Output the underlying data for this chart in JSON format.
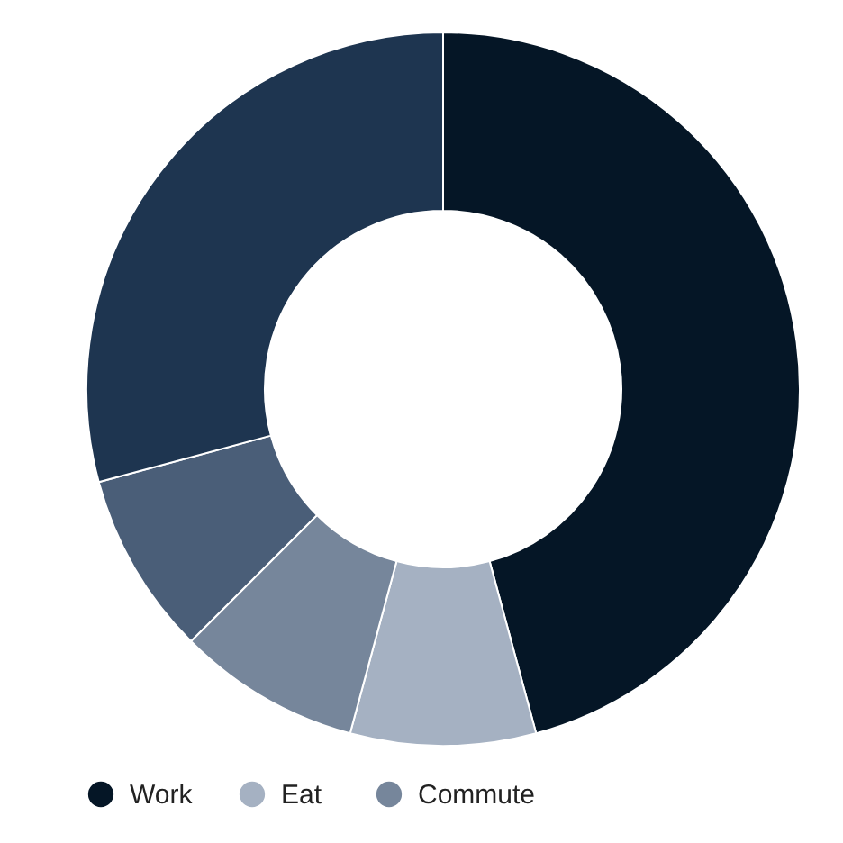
{
  "chart_data": {
    "type": "donut",
    "categories": [
      "Work",
      "Eat",
      "Commute",
      null,
      null
    ],
    "values": [
      45.8,
      8.4,
      8.3,
      8.3,
      29.2
    ],
    "colors": [
      "#051626",
      "#a5b1c2",
      "#76869b",
      "#4a5e78",
      "#1e3550"
    ],
    "legend": "bottom"
  }
}
